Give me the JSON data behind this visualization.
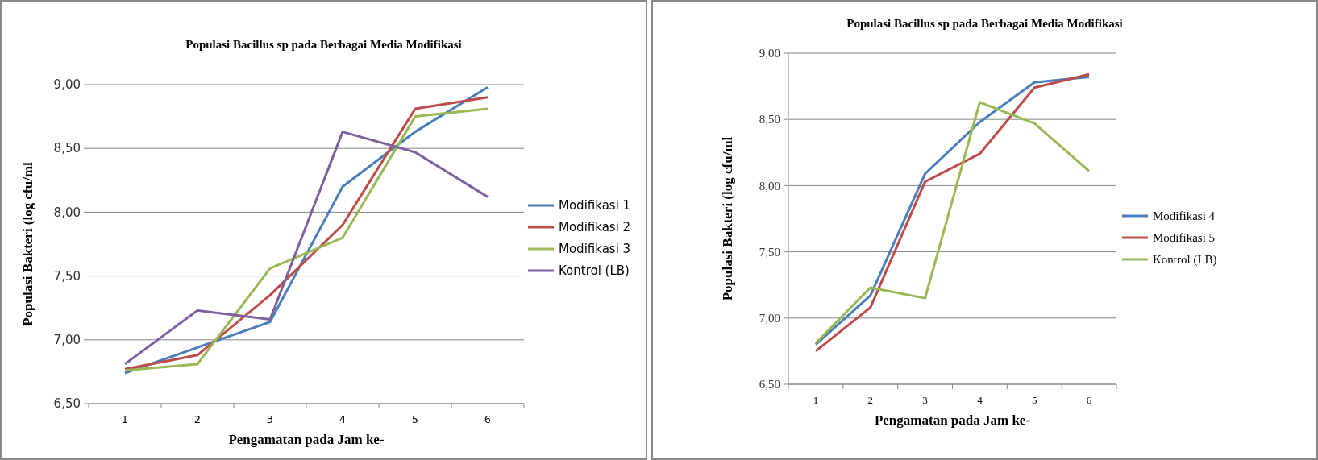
{
  "chart_data": [
    {
      "type": "line",
      "title": "Populasi Bacillus sp pada Berbagai Media Modifikasi",
      "xlabel": "Pengamatan pada Jam ke-",
      "ylabel": "Populasi Bakteri (log cfu/ml",
      "categories": [
        "1",
        "2",
        "3",
        "4",
        "5",
        "6"
      ],
      "ylim": [
        6.5,
        9
      ],
      "yticks": [
        {
          "value": 6.5,
          "label": "6,50"
        },
        {
          "value": 7,
          "label": "7,00"
        },
        {
          "value": 7.5,
          "label": "7,50"
        },
        {
          "value": 8,
          "label": "8,00"
        },
        {
          "value": 8.5,
          "label": "8,50"
        },
        {
          "value": 9,
          "label": "9,00"
        }
      ],
      "grid": "y",
      "legend": "right",
      "series": [
        {
          "name": "Modifikasi 1",
          "color": "#4a7ebb",
          "values": [
            6.74,
            6.94,
            7.14,
            8.2,
            8.63,
            8.98
          ]
        },
        {
          "name": "Modifikasi 2",
          "color": "#be4b48",
          "values": [
            6.77,
            6.88,
            7.35,
            7.9,
            8.81,
            8.9
          ]
        },
        {
          "name": "Modifikasi 3",
          "color": "#98b954",
          "values": [
            6.76,
            6.81,
            7.56,
            7.8,
            8.75,
            8.81
          ]
        },
        {
          "name": "Kontrol (LB)",
          "color": "#7d60a0",
          "values": [
            6.81,
            7.23,
            7.16,
            8.63,
            8.47,
            8.12
          ]
        }
      ]
    },
    {
      "type": "line",
      "title": "Populasi Bacillus sp pada Berbagai Media Modifikasi",
      "xlabel": "Pengamatan pada Jam ke-",
      "ylabel": "Populasi Bakteri (log cfu/ml",
      "categories": [
        "1",
        "2",
        "3",
        "4",
        "5",
        "6"
      ],
      "ylim": [
        6.5,
        9
      ],
      "yticks": [
        {
          "value": 6.5,
          "label": "6,50"
        },
        {
          "value": 7,
          "label": "7,00"
        },
        {
          "value": 7.5,
          "label": "7,50"
        },
        {
          "value": 8,
          "label": "8,00"
        },
        {
          "value": 8.5,
          "label": "8,50"
        },
        {
          "value": 9,
          "label": "9,00"
        }
      ],
      "grid": "y",
      "legend": "right",
      "series": [
        {
          "name": "Modifikasi 4",
          "color": "#4a7ebb",
          "values": [
            6.8,
            7.17,
            8.09,
            8.48,
            8.78,
            8.82
          ]
        },
        {
          "name": "Modifikasi 5",
          "color": "#be4b48",
          "values": [
            6.75,
            7.08,
            8.03,
            8.24,
            8.74,
            8.84
          ]
        },
        {
          "name": "Kontrol (LB)",
          "color": "#98b954",
          "values": [
            6.81,
            7.23,
            7.15,
            8.63,
            8.47,
            8.11
          ]
        }
      ]
    }
  ]
}
